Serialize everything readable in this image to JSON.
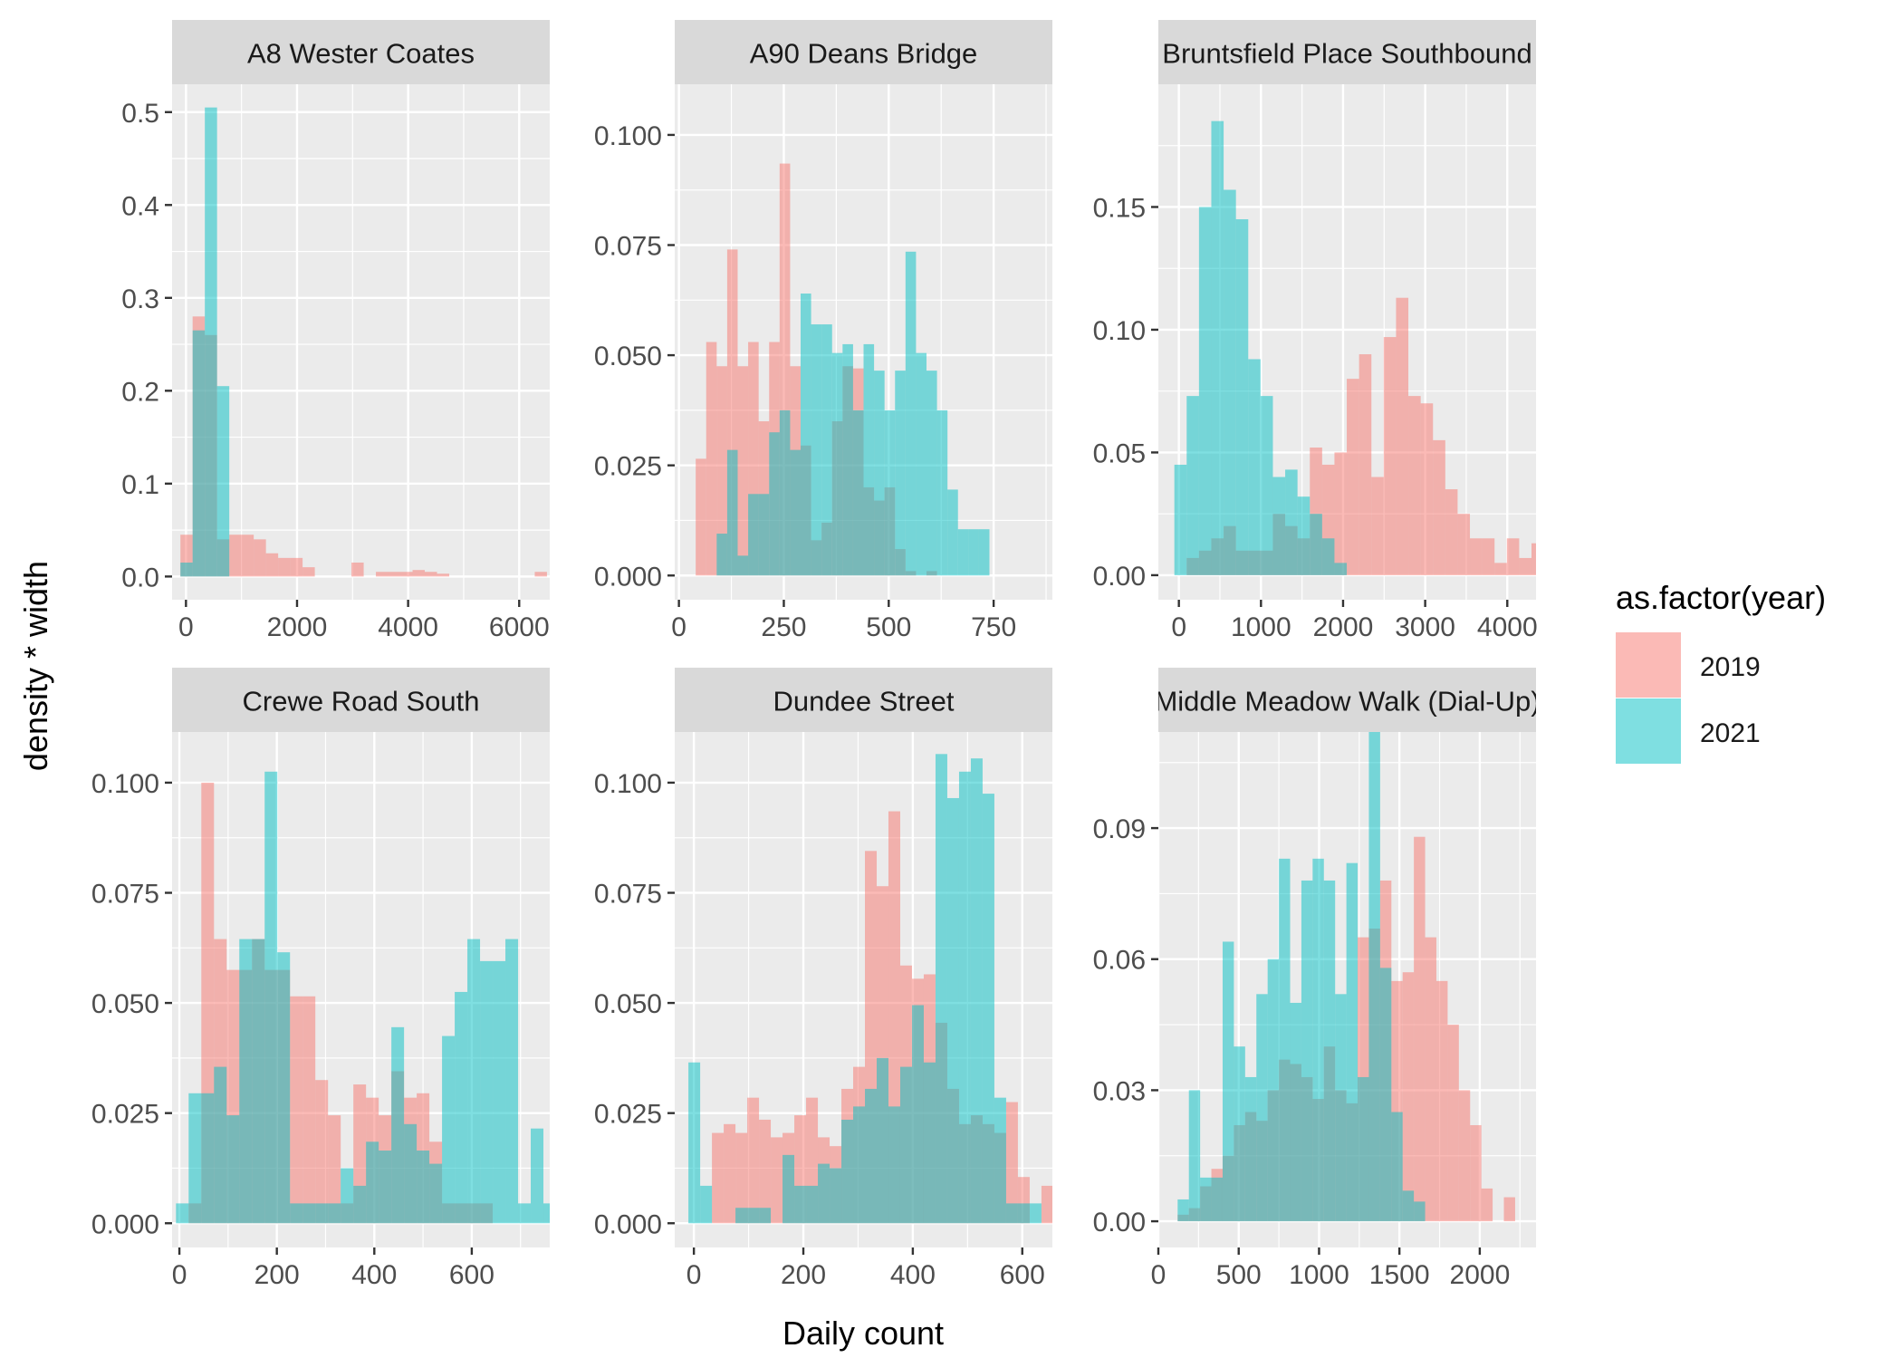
{
  "chart_data": {
    "type": "histogram-facets",
    "xlabel": "Daily count",
    "ylabel": "density * width",
    "legend": {
      "title": "as.factor(year)",
      "position": "right",
      "items": [
        {
          "label": "2019",
          "color": "#F8766D"
        },
        {
          "label": "2021",
          "color": "#00BFC4"
        }
      ]
    },
    "fill_alpha": 0.5,
    "panel_background": "#EBEBEB",
    "strip_background": "#D9D9D9",
    "grid": true,
    "facets": [
      {
        "title": "A8 Wester Coates",
        "xlim": [
          -250,
          6550
        ],
        "ylim": [
          -0.025,
          0.53
        ],
        "xticks": [
          0,
          2000,
          4000,
          6000
        ],
        "xtick_labels": [
          "0",
          "2000",
          "4000",
          "6000"
        ],
        "yticks": [
          0,
          0.1,
          0.2,
          0.3,
          0.4,
          0.5
        ],
        "ytick_labels": [
          "0.0",
          "0.1",
          "0.2",
          "0.3",
          "0.4",
          "0.5"
        ],
        "bin_start": -100,
        "bin_width": 220,
        "series": [
          {
            "name": "2019",
            "values": [
              0.045,
              0.28,
              0.26,
              0.04,
              0.045,
              0.045,
              0.04,
              0.025,
              0.02,
              0.02,
              0.01,
              0,
              0,
              0,
              0.015,
              0,
              0.005,
              0.005,
              0.005,
              0.007,
              0.005,
              0.003,
              0,
              0,
              0,
              0,
              0,
              0,
              0,
              0.005
            ]
          },
          {
            "name": "2021",
            "values": [
              0.015,
              0.265,
              0.505,
              0.205
            ]
          }
        ]
      },
      {
        "title": "A90 Deans Bridge",
        "xlim": [
          -10,
          890
        ],
        "ylim": [
          -0.0055,
          0.1115
        ],
        "xticks": [
          0,
          250,
          500,
          750
        ],
        "xtick_labels": [
          "0",
          "250",
          "500",
          "750"
        ],
        "yticks": [
          0,
          0.025,
          0.05,
          0.075,
          0.1
        ],
        "ytick_labels": [
          "0.000",
          "0.025",
          "0.050",
          "0.075",
          "0.100"
        ],
        "bin_start": 40,
        "bin_width": 25,
        "series": [
          {
            "name": "2019",
            "values": [
              0.0265,
              0.053,
              0.0475,
              0.074,
              0.0475,
              0.053,
              0.035,
              0.053,
              0.0935,
              0.0475,
              0.0295,
              0.008,
              0.012,
              0.035,
              0.0475,
              0.047,
              0.02,
              0.017,
              0.02,
              0.006,
              0.001,
              0,
              0.001
            ]
          },
          {
            "name": "2021",
            "values": [
              0,
              0,
              0.0095,
              0.0285,
              0.0045,
              0.0185,
              0.0185,
              0.0325,
              0.0375,
              0.0285,
              0.064,
              0.057,
              0.057,
              0.0505,
              0.0525,
              0.0375,
              0.0525,
              0.0465,
              0.0375,
              0.0465,
              0.0735,
              0.0505,
              0.0465,
              0.0375,
              0.0195,
              0.0105,
              0.0105,
              0.0105
            ]
          }
        ]
      },
      {
        "title": "Bruntsfield Place Southbound",
        "xlim": [
          -250,
          4350
        ],
        "ylim": [
          -0.01,
          0.2
        ],
        "xticks": [
          0,
          1000,
          2000,
          3000,
          4000
        ],
        "xtick_labels": [
          "0",
          "1000",
          "2000",
          "3000",
          "4000"
        ],
        "yticks": [
          0,
          0.05,
          0.1,
          0.15
        ],
        "ytick_labels": [
          "0.00",
          "0.05",
          "0.10",
          "0.15"
        ],
        "bin_start": -55,
        "bin_width": 150,
        "series": [
          {
            "name": "2019",
            "values": [
              0,
              0.007,
              0.01,
              0.015,
              0.02,
              0.01,
              0.01,
              0.01,
              0.025,
              0.02,
              0.015,
              0.052,
              0.045,
              0.05,
              0.08,
              0.09,
              0.04,
              0.097,
              0.113,
              0.073,
              0.07,
              0.055,
              0.035,
              0.025,
              0.015,
              0.015,
              0.005,
              0.015,
              0.007,
              0.013,
              0.013,
              0.005
            ]
          },
          {
            "name": "2021",
            "values": [
              0.045,
              0.073,
              0.15,
              0.185,
              0.157,
              0.145,
              0.088,
              0.073,
              0.04,
              0.043,
              0.032,
              0.025,
              0.015,
              0.005
            ]
          }
        ]
      },
      {
        "title": "Crewe Road South",
        "xlim": [
          -15,
          760
        ],
        "ylim": [
          -0.0055,
          0.1115
        ],
        "xticks": [
          0,
          200,
          400,
          600
        ],
        "xtick_labels": [
          "0",
          "200",
          "400",
          "600"
        ],
        "yticks": [
          0,
          0.025,
          0.05,
          0.075,
          0.1
        ],
        "ytick_labels": [
          "0.000",
          "0.025",
          "0.050",
          "0.075",
          "0.100"
        ],
        "bin_start": -7,
        "bin_width": 26,
        "series": [
          {
            "name": "2019",
            "values": [
              0,
              0.0045,
              0.1,
              0.0645,
              0.0575,
              0.0575,
              0.0645,
              0.0575,
              0.0575,
              0.0515,
              0.0515,
              0.0325,
              0.0245,
              0.0045,
              0.0315,
              0.0285,
              0.0245,
              0.0345,
              0.0285,
              0.0295,
              0.0185,
              0.0045,
              0.0045,
              0.0045,
              0.0045
            ]
          },
          {
            "name": "2021",
            "values": [
              0.0045,
              0.0295,
              0.0295,
              0.0355,
              0.0245,
              0.0645,
              0.0645,
              0.1025,
              0.0615,
              0.0045,
              0.0045,
              0.0045,
              0.0045,
              0.0125,
              0.0085,
              0.0185,
              0.0165,
              0.0445,
              0.0225,
              0.0165,
              0.0135,
              0.0425,
              0.0525,
              0.0645,
              0.0595,
              0.0595,
              0.0645,
              0.0045,
              0.0215,
              0.0045
            ]
          }
        ]
      },
      {
        "title": "Dundee Street",
        "xlim": [
          -35,
          655
        ],
        "ylim": [
          -0.0055,
          0.1115
        ],
        "xticks": [
          0,
          200,
          400,
          600
        ],
        "xtick_labels": [
          "0",
          "200",
          "400",
          "600"
        ],
        "yticks": [
          0,
          0.025,
          0.05,
          0.075,
          0.1
        ],
        "ytick_labels": [
          "0.000",
          "0.025",
          "0.050",
          "0.075",
          "0.100"
        ],
        "bin_start": -10,
        "bin_width": 21.5,
        "series": [
          {
            "name": "2019",
            "values": [
              0,
              0,
              0.0205,
              0.0225,
              0.0205,
              0.0285,
              0.0235,
              0.0195,
              0.0205,
              0.0245,
              0.0285,
              0.0195,
              0.0175,
              0.0305,
              0.0355,
              0.0845,
              0.0765,
              0.0935,
              0.0585,
              0.0555,
              0.0565,
              0.0455,
              0.0305,
              0.0225,
              0.0245,
              0.0225,
              0.0205,
              0.0275,
              0.0105,
              0,
              0.0085
            ]
          },
          {
            "name": "2021",
            "values": [
              0.0365,
              0.0085,
              0,
              0,
              0.0035,
              0.0035,
              0.0035,
              0,
              0.0155,
              0.0085,
              0.0085,
              0.0135,
              0.0125,
              0.0235,
              0.0265,
              0.0305,
              0.0375,
              0.0265,
              0.0355,
              0.0495,
              0.0365,
              0.1065,
              0.0965,
              0.1025,
              0.1055,
              0.0975,
              0.0285,
              0.0045,
              0.0045,
              0.0045
            ]
          }
        ]
      },
      {
        "title": "Middle Meadow Walk (Dial-Up)",
        "xlim": [
          0,
          2350
        ],
        "ylim": [
          -0.006,
          0.112
        ],
        "xticks": [
          0,
          500,
          1000,
          1500,
          2000
        ],
        "xtick_labels": [
          "0",
          "500",
          "1000",
          "1500",
          "2000"
        ],
        "yticks": [
          0,
          0.03,
          0.06,
          0.09
        ],
        "ytick_labels": [
          "0.00",
          "0.03",
          "0.06",
          "0.09"
        ],
        "bin_start": 120,
        "bin_width": 70,
        "series": [
          {
            "name": "2019",
            "values": [
              0.0015,
              0.003,
              0.008,
              0.012,
              0.015,
              0.022,
              0.025,
              0.023,
              0.03,
              0.037,
              0.036,
              0.033,
              0.028,
              0.04,
              0.03,
              0.027,
              0.065,
              0.067,
              0.078,
              0.055,
              0.057,
              0.088,
              0.065,
              0.055,
              0.045,
              0.03,
              0.022,
              0.0075,
              0.0,
              0.0055
            ]
          },
          {
            "name": "2021",
            "values": [
              0.005,
              0.03,
              0.01,
              0.01,
              0.064,
              0.04,
              0.033,
              0.052,
              0.06,
              0.083,
              0.05,
              0.078,
              0.083,
              0.078,
              0.052,
              0.082,
              0.033,
              0.112,
              0.058,
              0.025,
              0.007,
              0.0045,
              0,
              0,
              0,
              0,
              0,
              0,
              0,
              0
            ]
          }
        ]
      }
    ]
  }
}
